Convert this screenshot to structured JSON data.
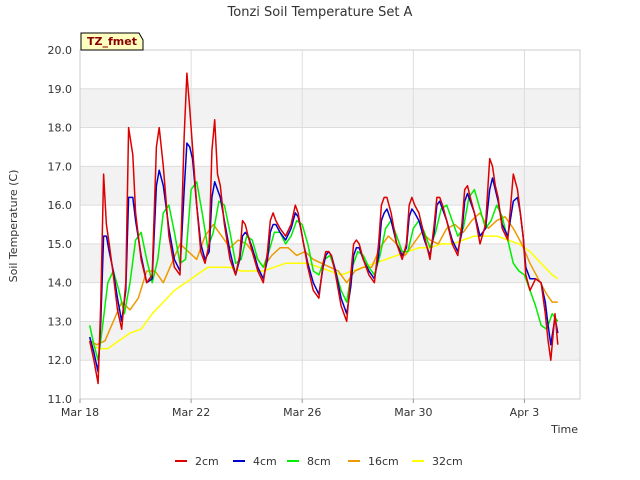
{
  "chart_data": {
    "type": "line",
    "title": "Tonzi Soil Temperature Set A",
    "xlabel": "Time",
    "ylabel": "Soil Temperature (C)",
    "badge": "TZ_fmet",
    "ylim": [
      11.0,
      20.0
    ],
    "xlim": [
      0,
      18
    ],
    "yticks": [
      "11.0",
      "12.0",
      "13.0",
      "14.0",
      "15.0",
      "16.0",
      "17.0",
      "18.0",
      "19.0",
      "20.0"
    ],
    "xticks": [
      {
        "label": "Mar 18",
        "value": 0
      },
      {
        "label": "Mar 22",
        "value": 4
      },
      {
        "label": "Mar 26",
        "value": 8
      },
      {
        "label": "Mar 30",
        "value": 12
      },
      {
        "label": "Apr 3",
        "value": 16
      }
    ],
    "legend_position": "bottom-center",
    "series": [
      {
        "name": "2cm",
        "color": "#dd0000",
        "x": [
          0.35,
          0.5,
          0.65,
          0.75,
          0.85,
          0.95,
          1.05,
          1.2,
          1.35,
          1.5,
          1.65,
          1.75,
          1.9,
          2.0,
          2.2,
          2.4,
          2.6,
          2.75,
          2.85,
          3.0,
          3.2,
          3.4,
          3.6,
          3.75,
          3.85,
          3.95,
          4.05,
          4.2,
          4.35,
          4.5,
          4.65,
          4.75,
          4.85,
          4.95,
          5.05,
          5.2,
          5.4,
          5.6,
          5.75,
          5.85,
          5.95,
          6.05,
          6.2,
          6.4,
          6.6,
          6.75,
          6.85,
          6.95,
          7.05,
          7.2,
          7.4,
          7.6,
          7.75,
          7.85,
          7.95,
          8.05,
          8.2,
          8.4,
          8.6,
          8.75,
          8.85,
          8.95,
          9.05,
          9.2,
          9.4,
          9.6,
          9.75,
          9.85,
          9.95,
          10.05,
          10.2,
          10.4,
          10.6,
          10.75,
          10.85,
          10.95,
          11.05,
          11.2,
          11.4,
          11.6,
          11.75,
          11.85,
          11.95,
          12.05,
          12.2,
          12.4,
          12.6,
          12.75,
          12.85,
          12.95,
          13.05,
          13.2,
          13.4,
          13.6,
          13.75,
          13.85,
          13.95,
          14.05,
          14.2,
          14.4,
          14.6,
          14.75,
          14.85,
          14.95,
          15.05,
          15.2,
          15.4,
          15.6,
          15.75,
          15.85,
          15.95,
          16.05,
          16.2,
          16.4,
          16.6,
          16.75,
          16.85,
          16.95,
          17.1,
          17.2
        ],
        "values": [
          12.5,
          12.0,
          11.4,
          13.5,
          16.8,
          15.5,
          15.0,
          14.2,
          13.3,
          12.8,
          14.0,
          18.0,
          17.3,
          15.8,
          14.6,
          14.0,
          14.2,
          17.5,
          18.0,
          17.0,
          15.2,
          14.4,
          14.2,
          17.8,
          19.4,
          18.5,
          17.5,
          16.0,
          14.8,
          14.5,
          15.0,
          17.4,
          18.2,
          16.8,
          16.5,
          15.5,
          14.6,
          14.2,
          14.7,
          15.6,
          15.5,
          15.2,
          14.8,
          14.3,
          14.0,
          14.8,
          15.6,
          15.8,
          15.6,
          15.4,
          15.2,
          15.5,
          16.0,
          15.8,
          15.4,
          15.0,
          14.4,
          13.8,
          13.6,
          14.5,
          14.8,
          14.8,
          14.7,
          14.2,
          13.4,
          13.0,
          14.2,
          15.0,
          15.1,
          15.0,
          14.6,
          14.2,
          14.0,
          15.0,
          16.0,
          16.2,
          16.2,
          15.8,
          15.0,
          14.6,
          15.0,
          16.0,
          16.2,
          16.0,
          15.8,
          15.2,
          14.6,
          15.5,
          16.2,
          16.2,
          16.0,
          15.6,
          15.0,
          14.7,
          15.5,
          16.4,
          16.5,
          16.2,
          15.8,
          15.0,
          15.5,
          17.2,
          17.0,
          16.5,
          16.2,
          15.4,
          15.1,
          16.8,
          16.4,
          15.8,
          15.2,
          14.2,
          13.8,
          14.1,
          14.0,
          13.2,
          12.5,
          12.0,
          13.2,
          12.4
        ]
      },
      {
        "name": "4cm",
        "color": "#0000cc",
        "x": [
          0.35,
          0.5,
          0.65,
          0.75,
          0.85,
          0.95,
          1.05,
          1.2,
          1.35,
          1.5,
          1.65,
          1.75,
          1.9,
          2.0,
          2.2,
          2.4,
          2.6,
          2.75,
          2.85,
          3.0,
          3.2,
          3.4,
          3.6,
          3.75,
          3.85,
          3.95,
          4.05,
          4.2,
          4.35,
          4.5,
          4.65,
          4.75,
          4.85,
          4.95,
          5.05,
          5.2,
          5.4,
          5.6,
          5.75,
          5.85,
          5.95,
          6.05,
          6.2,
          6.4,
          6.6,
          6.75,
          6.85,
          6.95,
          7.05,
          7.2,
          7.4,
          7.6,
          7.75,
          7.85,
          7.95,
          8.05,
          8.2,
          8.4,
          8.6,
          8.75,
          8.85,
          8.95,
          9.05,
          9.2,
          9.4,
          9.6,
          9.75,
          9.85,
          9.95,
          10.05,
          10.2,
          10.4,
          10.6,
          10.75,
          10.85,
          10.95,
          11.05,
          11.2,
          11.4,
          11.6,
          11.75,
          11.85,
          11.95,
          12.05,
          12.2,
          12.4,
          12.6,
          12.75,
          12.85,
          12.95,
          13.05,
          13.2,
          13.4,
          13.6,
          13.75,
          13.85,
          13.95,
          14.05,
          14.2,
          14.4,
          14.6,
          14.75,
          14.85,
          14.95,
          15.05,
          15.2,
          15.4,
          15.6,
          15.75,
          15.85,
          15.95,
          16.05,
          16.2,
          16.4,
          16.6,
          16.75,
          16.85,
          16.95,
          17.1,
          17.2
        ],
        "values": [
          12.6,
          12.2,
          11.7,
          13.0,
          15.2,
          15.2,
          14.8,
          14.3,
          13.6,
          13.0,
          13.8,
          16.2,
          16.2,
          15.6,
          14.7,
          14.0,
          14.1,
          16.5,
          16.9,
          16.5,
          15.4,
          14.6,
          14.3,
          16.4,
          17.6,
          17.5,
          17.2,
          16.0,
          15.0,
          14.6,
          14.8,
          16.2,
          16.6,
          16.4,
          16.2,
          15.6,
          14.8,
          14.2,
          14.6,
          15.2,
          15.3,
          15.2,
          14.9,
          14.4,
          14.1,
          14.6,
          15.3,
          15.5,
          15.5,
          15.3,
          15.1,
          15.4,
          15.8,
          15.7,
          15.4,
          15.0,
          14.5,
          14.0,
          13.7,
          14.4,
          14.7,
          14.8,
          14.7,
          14.3,
          13.6,
          13.2,
          13.9,
          14.7,
          14.9,
          14.9,
          14.6,
          14.3,
          14.1,
          14.7,
          15.6,
          15.8,
          15.9,
          15.6,
          15.0,
          14.7,
          14.9,
          15.7,
          15.9,
          15.8,
          15.6,
          15.1,
          14.7,
          15.3,
          16.0,
          16.1,
          15.9,
          15.6,
          15.1,
          14.8,
          15.3,
          16.1,
          16.3,
          16.1,
          15.8,
          15.2,
          15.4,
          16.4,
          16.7,
          16.4,
          16.1,
          15.5,
          15.2,
          16.1,
          16.2,
          15.8,
          15.2,
          14.4,
          14.1,
          14.1,
          14.0,
          13.5,
          12.9,
          12.4,
          13.1,
          12.7
        ]
      },
      {
        "name": "8cm",
        "color": "#00ee00",
        "x": [
          0.35,
          0.5,
          0.65,
          0.8,
          1.0,
          1.2,
          1.4,
          1.6,
          1.8,
          2.0,
          2.2,
          2.4,
          2.6,
          2.8,
          3.0,
          3.2,
          3.4,
          3.6,
          3.8,
          4.0,
          4.2,
          4.4,
          4.6,
          4.8,
          5.0,
          5.2,
          5.4,
          5.6,
          5.8,
          6.0,
          6.2,
          6.4,
          6.6,
          6.8,
          7.0,
          7.2,
          7.4,
          7.6,
          7.8,
          8.0,
          8.2,
          8.4,
          8.6,
          8.8,
          9.0,
          9.2,
          9.4,
          9.6,
          9.8,
          10.0,
          10.2,
          10.4,
          10.6,
          10.8,
          11.0,
          11.2,
          11.4,
          11.6,
          11.8,
          12.0,
          12.2,
          12.4,
          12.6,
          12.8,
          13.0,
          13.2,
          13.4,
          13.6,
          13.8,
          14.0,
          14.2,
          14.4,
          14.6,
          14.8,
          15.0,
          15.2,
          15.4,
          15.6,
          15.8,
          16.0,
          16.2,
          16.4,
          16.6,
          16.8,
          17.0,
          17.2
        ],
        "values": [
          12.9,
          12.4,
          12.0,
          12.8,
          14.0,
          14.3,
          13.8,
          13.2,
          14.0,
          15.1,
          15.3,
          14.6,
          14.0,
          14.6,
          15.8,
          16.0,
          15.3,
          14.5,
          14.6,
          16.4,
          16.6,
          15.8,
          14.9,
          15.3,
          16.1,
          16.0,
          15.3,
          14.5,
          14.6,
          15.2,
          15.1,
          14.6,
          14.4,
          14.8,
          15.3,
          15.3,
          15.0,
          15.2,
          15.6,
          15.5,
          15.0,
          14.3,
          14.2,
          14.6,
          14.7,
          14.3,
          13.8,
          13.5,
          14.4,
          14.8,
          14.7,
          14.4,
          14.2,
          14.7,
          15.4,
          15.6,
          15.2,
          14.8,
          14.8,
          15.4,
          15.6,
          15.3,
          14.9,
          15.3,
          15.9,
          16.0,
          15.6,
          15.2,
          15.4,
          16.2,
          16.4,
          15.9,
          15.4,
          15.6,
          16.0,
          15.7,
          15.1,
          14.5,
          14.3,
          14.2,
          13.8,
          13.4,
          12.9,
          12.8,
          13.2,
          13.0
        ]
      },
      {
        "name": "16cm",
        "color": "#ee9900",
        "x": [
          0.35,
          0.6,
          0.9,
          1.2,
          1.5,
          1.8,
          2.1,
          2.4,
          2.7,
          3.0,
          3.3,
          3.6,
          3.9,
          4.2,
          4.5,
          4.8,
          5.1,
          5.4,
          5.7,
          6.0,
          6.3,
          6.6,
          6.9,
          7.2,
          7.5,
          7.8,
          8.1,
          8.4,
          8.7,
          9.0,
          9.3,
          9.6,
          9.9,
          10.2,
          10.5,
          10.8,
          11.1,
          11.4,
          11.7,
          12.0,
          12.3,
          12.6,
          12.9,
          13.2,
          13.5,
          13.8,
          14.1,
          14.4,
          14.7,
          15.0,
          15.3,
          15.6,
          15.9,
          16.2,
          16.5,
          16.8,
          17.0,
          17.2
        ],
        "values": [
          12.5,
          12.4,
          12.5,
          13.0,
          13.5,
          13.3,
          13.6,
          14.3,
          14.3,
          14.0,
          14.5,
          15.0,
          14.8,
          14.6,
          15.2,
          15.5,
          15.2,
          14.9,
          15.1,
          15.0,
          14.7,
          14.4,
          14.7,
          14.9,
          14.9,
          14.7,
          14.8,
          14.6,
          14.5,
          14.4,
          14.3,
          14.0,
          14.3,
          14.4,
          14.4,
          14.9,
          15.2,
          15.0,
          14.7,
          15.0,
          15.3,
          15.1,
          15.0,
          15.4,
          15.5,
          15.3,
          15.6,
          15.8,
          15.4,
          15.6,
          15.7,
          15.4,
          15.0,
          14.5,
          14.1,
          13.7,
          13.5,
          13.5
        ]
      },
      {
        "name": "32cm",
        "color": "#ffff00",
        "x": [
          0.35,
          0.7,
          1.0,
          1.4,
          1.8,
          2.2,
          2.6,
          3.0,
          3.4,
          3.8,
          4.2,
          4.6,
          5.0,
          5.4,
          5.8,
          6.2,
          6.6,
          7.0,
          7.4,
          7.8,
          8.2,
          8.6,
          9.0,
          9.4,
          9.8,
          10.2,
          10.6,
          11.0,
          11.4,
          11.8,
          12.2,
          12.6,
          13.0,
          13.4,
          13.8,
          14.2,
          14.6,
          15.0,
          15.4,
          15.8,
          16.2,
          16.6,
          17.0,
          17.2
        ],
        "values": [
          12.4,
          12.3,
          12.3,
          12.5,
          12.7,
          12.8,
          13.2,
          13.5,
          13.8,
          14.0,
          14.2,
          14.4,
          14.4,
          14.4,
          14.3,
          14.3,
          14.3,
          14.4,
          14.5,
          14.5,
          14.5,
          14.4,
          14.3,
          14.2,
          14.3,
          14.4,
          14.5,
          14.6,
          14.7,
          14.8,
          14.9,
          14.9,
          15.0,
          15.0,
          15.1,
          15.2,
          15.2,
          15.2,
          15.1,
          15.0,
          14.8,
          14.5,
          14.2,
          14.1
        ]
      }
    ]
  }
}
